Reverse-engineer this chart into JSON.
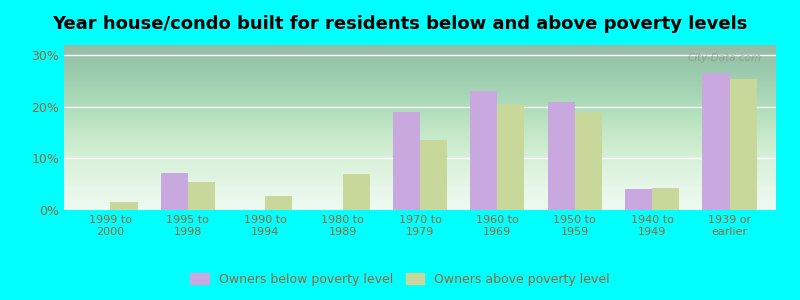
{
  "title": "Year house/condo built for residents below and above poverty levels",
  "categories": [
    "1999 to\n2000",
    "1995 to\n1998",
    "1990 to\n1994",
    "1980 to\n1989",
    "1970 to\n1979",
    "1960 to\n1969",
    "1950 to\n1959",
    "1940 to\n1949",
    "1939 or\nearlier"
  ],
  "below_poverty": [
    0.0,
    7.2,
    0.0,
    0.0,
    19.0,
    23.0,
    21.0,
    4.0,
    26.5
  ],
  "above_poverty": [
    1.5,
    5.5,
    2.8,
    7.0,
    13.5,
    20.5,
    19.0,
    4.2,
    25.5
  ],
  "below_color": "#c9a8e0",
  "above_color": "#c8d89a",
  "plot_bg_top": "#e8f8ee",
  "plot_bg_bottom": "#f5fff8",
  "outer_background": "#00ffff",
  "ylim": [
    0,
    32
  ],
  "yticks": [
    0,
    10,
    20,
    30
  ],
  "yticklabels": [
    "0%",
    "10%",
    "20%",
    "30%"
  ],
  "legend_below": "Owners below poverty level",
  "legend_above": "Owners above poverty level",
  "title_fontsize": 13,
  "tick_color": "#996633",
  "bar_width": 0.35
}
